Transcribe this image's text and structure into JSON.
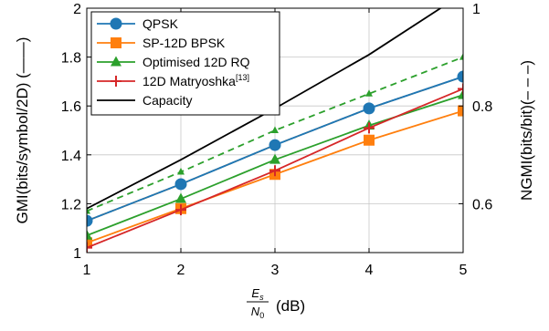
{
  "chart_data": {
    "type": "line",
    "x": [
      1,
      2,
      3,
      4,
      5
    ],
    "xlabel_prefix": "",
    "xlabel_num": "Es",
    "xlabel_num_sub": "s",
    "xlabel_num_base": "E",
    "xlabel_den_base": "N",
    "xlabel_den_sub": "0",
    "xlabel_unit": "(dB)",
    "ylabel_left": "GMI(bits/symbol/2D) (——)",
    "ylabel_right": "NGMI(bits/bit)(– – –)",
    "xlim": [
      1,
      5
    ],
    "ylim_left": [
      1,
      2
    ],
    "ylim_right": [
      0.5,
      1.0
    ],
    "x_ticks": [
      "1",
      "2",
      "3",
      "4",
      "5"
    ],
    "y_left_ticks": [
      "1",
      "1.2",
      "1.4",
      "1.6",
      "1.8",
      "2"
    ],
    "y_right_ticks": [
      "0.6",
      "0.8",
      "1"
    ],
    "grid": true,
    "legend_position": "top-left",
    "series": [
      {
        "name": "QPSK",
        "color": "#1f77b4",
        "marker": "circle",
        "gmi": [
          1.13,
          1.28,
          1.44,
          1.59,
          1.72
        ],
        "ngmi": [
          0.565,
          0.64,
          0.72,
          0.795,
          0.86
        ]
      },
      {
        "name": "SP-12D BPSK",
        "color": "#ff7f0e",
        "marker": "square",
        "gmi": [
          1.04,
          1.18,
          1.32,
          1.46,
          1.58
        ],
        "ngmi": [
          0.565,
          0.64,
          0.72,
          0.795,
          0.86
        ]
      },
      {
        "name": "Optimised 12D RQ",
        "color": "#2ca02c",
        "marker": "triangle",
        "gmi": [
          1.07,
          1.22,
          1.38,
          1.52,
          1.645
        ],
        "ngmi": [
          0.585,
          0.665,
          0.75,
          0.825,
          0.9
        ]
      },
      {
        "name": "12D Matryoshka",
        "name_sup": "[13]",
        "color": "#d62728",
        "marker": "plus",
        "gmi": [
          1.02,
          1.175,
          1.335,
          1.51,
          1.67
        ],
        "ngmi": null
      },
      {
        "name": "Capacity",
        "color": "#000000",
        "marker": "none",
        "gmi": [
          1.18,
          1.38,
          1.59,
          1.81,
          2.06
        ],
        "ngmi": null
      }
    ]
  }
}
